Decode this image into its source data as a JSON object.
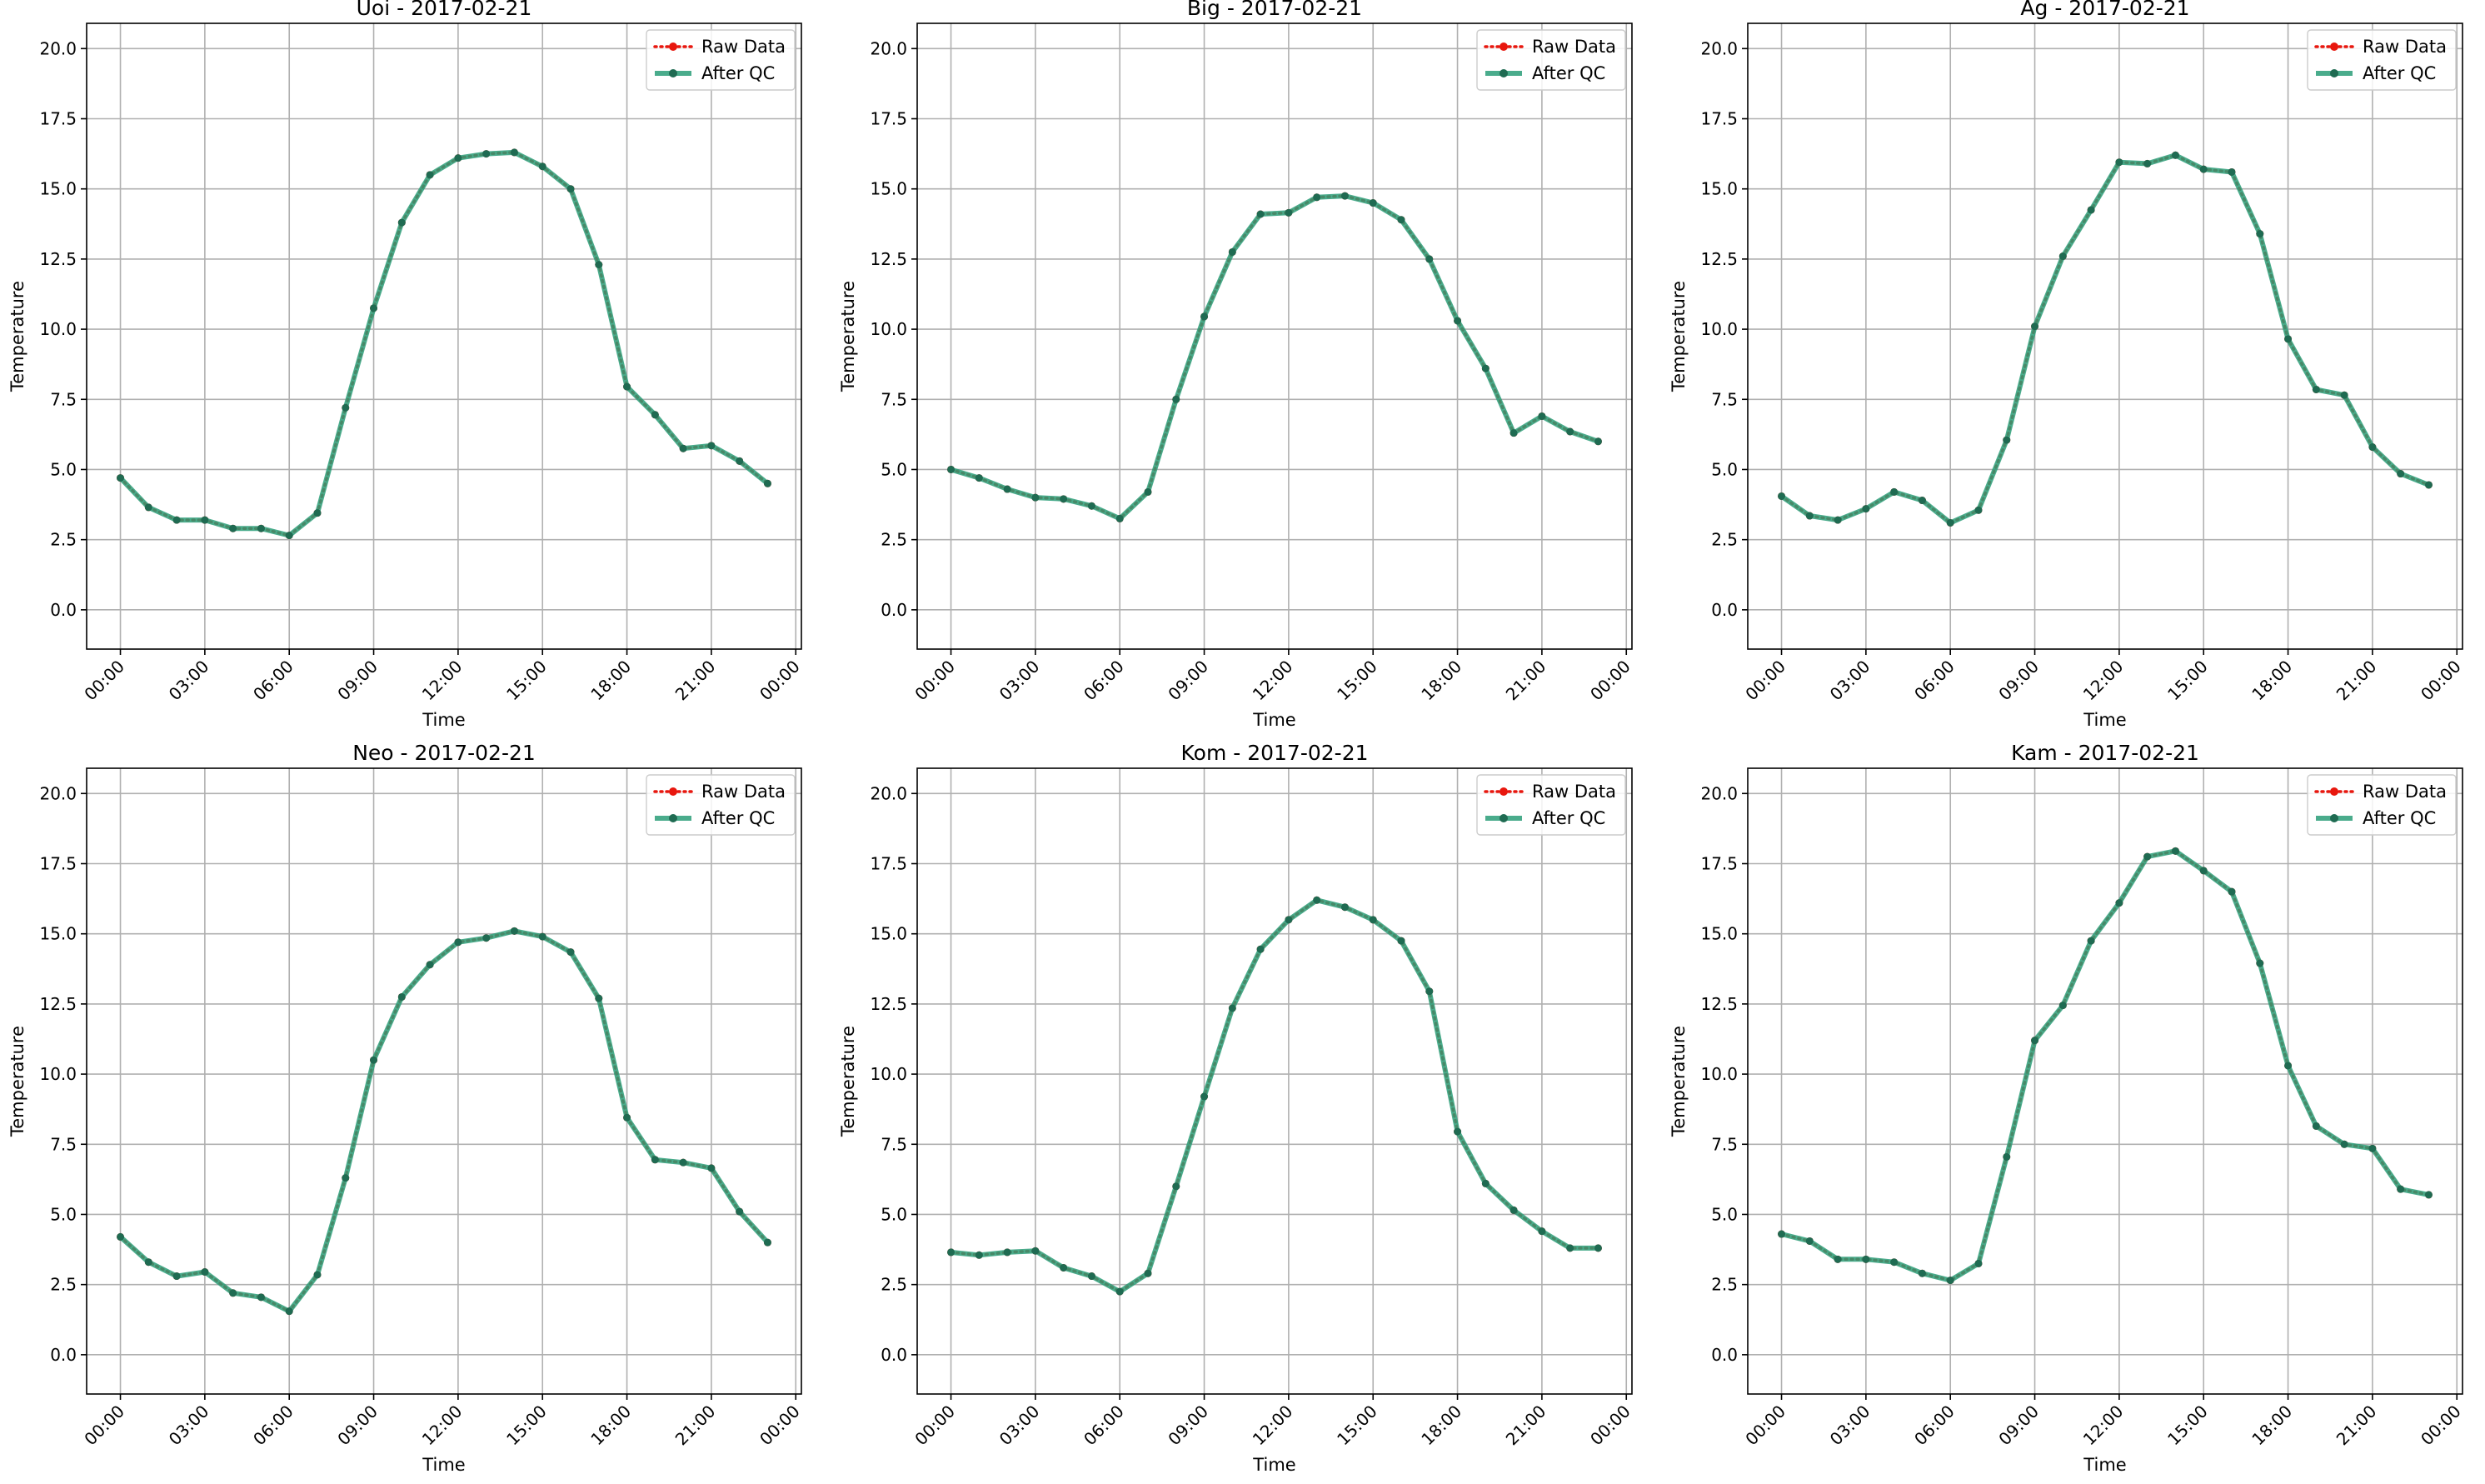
{
  "chart_data": [
    {
      "type": "line",
      "title": "Uoi - 2017-02-21",
      "xlabel": "Time",
      "ylabel": "Temperature",
      "xticks": [
        "00:00",
        "03:00",
        "06:00",
        "09:00",
        "12:00",
        "15:00",
        "18:00",
        "21:00",
        "00:00"
      ],
      "yticks": [
        "0.0",
        "2.5",
        "5.0",
        "7.5",
        "10.0",
        "12.5",
        "15.0",
        "17.5",
        "20.0"
      ],
      "ylim": [
        -1.4,
        20.9
      ],
      "grid": true,
      "legend_position": "top-right",
      "x": [
        "00:00",
        "01:00",
        "02:00",
        "03:00",
        "04:00",
        "05:00",
        "06:00",
        "07:00",
        "08:00",
        "09:00",
        "10:00",
        "11:00",
        "12:00",
        "13:00",
        "14:00",
        "15:00",
        "16:00",
        "17:00",
        "18:00",
        "19:00",
        "20:00",
        "21:00",
        "22:00",
        "23:00"
      ],
      "series": [
        {
          "name": "Raw Data",
          "color": "#e8170e",
          "style": "dotted",
          "marker": "circle",
          "values": [
            4.7,
            3.65,
            3.2,
            3.2,
            2.9,
            2.9,
            2.65,
            3.45,
            7.2,
            10.75,
            13.8,
            15.5,
            16.1,
            16.25,
            16.3,
            15.8,
            15.0,
            12.3,
            7.95,
            6.95,
            5.75,
            5.85,
            5.3,
            4.5
          ]
        },
        {
          "name": "After QC",
          "color": "#2a9d78",
          "style": "solid",
          "marker": "circle",
          "values": [
            4.7,
            3.65,
            3.2,
            3.2,
            2.9,
            2.9,
            2.65,
            3.45,
            7.2,
            10.75,
            13.8,
            15.5,
            16.1,
            16.25,
            16.3,
            15.8,
            15.0,
            12.3,
            7.95,
            6.95,
            5.75,
            5.85,
            5.3,
            4.5
          ]
        }
      ]
    },
    {
      "type": "line",
      "title": "Big - 2017-02-21",
      "xlabel": "Time",
      "ylabel": "Temperature",
      "xticks": [
        "00:00",
        "03:00",
        "06:00",
        "09:00",
        "12:00",
        "15:00",
        "18:00",
        "21:00",
        "00:00"
      ],
      "yticks": [
        "0.0",
        "2.5",
        "5.0",
        "7.5",
        "10.0",
        "12.5",
        "15.0",
        "17.5",
        "20.0"
      ],
      "ylim": [
        -1.4,
        20.9
      ],
      "grid": true,
      "legend_position": "top-right",
      "x": [
        "00:00",
        "01:00",
        "02:00",
        "03:00",
        "04:00",
        "05:00",
        "06:00",
        "07:00",
        "08:00",
        "09:00",
        "10:00",
        "11:00",
        "12:00",
        "13:00",
        "14:00",
        "15:00",
        "16:00",
        "17:00",
        "18:00",
        "19:00",
        "20:00",
        "21:00",
        "22:00",
        "23:00"
      ],
      "series": [
        {
          "name": "Raw Data",
          "color": "#e8170e",
          "style": "dotted",
          "marker": "circle",
          "values": [
            5.0,
            4.7,
            4.3,
            4.0,
            3.95,
            3.7,
            3.25,
            4.2,
            7.5,
            10.45,
            12.75,
            14.1,
            14.15,
            14.7,
            14.75,
            14.5,
            13.9,
            12.5,
            10.3,
            8.6,
            6.3,
            6.9,
            6.35,
            6.0
          ]
        },
        {
          "name": "After QC",
          "color": "#2a9d78",
          "style": "solid",
          "marker": "circle",
          "values": [
            5.0,
            4.7,
            4.3,
            4.0,
            3.95,
            3.7,
            3.25,
            4.2,
            7.5,
            10.45,
            12.75,
            14.1,
            14.15,
            14.7,
            14.75,
            14.5,
            13.9,
            12.5,
            10.3,
            8.6,
            6.3,
            6.9,
            6.35,
            6.0
          ]
        }
      ]
    },
    {
      "type": "line",
      "title": "Ag - 2017-02-21",
      "xlabel": "Time",
      "ylabel": "Temperature",
      "xticks": [
        "00:00",
        "03:00",
        "06:00",
        "09:00",
        "12:00",
        "15:00",
        "18:00",
        "21:00",
        "00:00"
      ],
      "yticks": [
        "0.0",
        "2.5",
        "5.0",
        "7.5",
        "10.0",
        "12.5",
        "15.0",
        "17.5",
        "20.0"
      ],
      "ylim": [
        -1.4,
        20.9
      ],
      "grid": true,
      "legend_position": "top-right",
      "x": [
        "00:00",
        "01:00",
        "02:00",
        "03:00",
        "04:00",
        "05:00",
        "06:00",
        "07:00",
        "08:00",
        "09:00",
        "10:00",
        "11:00",
        "12:00",
        "13:00",
        "14:00",
        "15:00",
        "16:00",
        "17:00",
        "18:00",
        "19:00",
        "20:00",
        "21:00",
        "22:00",
        "23:00"
      ],
      "series": [
        {
          "name": "Raw Data",
          "color": "#e8170e",
          "style": "dotted",
          "marker": "circle",
          "values": [
            4.05,
            3.35,
            3.2,
            3.6,
            4.2,
            3.9,
            3.1,
            3.55,
            6.05,
            10.1,
            12.6,
            14.25,
            15.95,
            15.9,
            16.2,
            15.7,
            15.6,
            13.4,
            9.65,
            7.85,
            7.65,
            5.8,
            4.85,
            4.45
          ]
        },
        {
          "name": "After QC",
          "color": "#2a9d78",
          "style": "solid",
          "marker": "circle",
          "values": [
            4.05,
            3.35,
            3.2,
            3.6,
            4.2,
            3.9,
            3.1,
            3.55,
            6.05,
            10.1,
            12.6,
            14.25,
            15.95,
            15.9,
            16.2,
            15.7,
            15.6,
            13.4,
            9.65,
            7.85,
            7.65,
            5.8,
            4.85,
            4.45
          ]
        }
      ]
    },
    {
      "type": "line",
      "title": "Neo - 2017-02-21",
      "xlabel": "Time",
      "ylabel": "Temperature",
      "xticks": [
        "00:00",
        "03:00",
        "06:00",
        "09:00",
        "12:00",
        "15:00",
        "18:00",
        "21:00",
        "00:00"
      ],
      "yticks": [
        "0.0",
        "2.5",
        "5.0",
        "7.5",
        "10.0",
        "12.5",
        "15.0",
        "17.5",
        "20.0"
      ],
      "ylim": [
        -1.4,
        20.9
      ],
      "grid": true,
      "legend_position": "top-right",
      "x": [
        "00:00",
        "01:00",
        "02:00",
        "03:00",
        "04:00",
        "05:00",
        "06:00",
        "07:00",
        "08:00",
        "09:00",
        "10:00",
        "11:00",
        "12:00",
        "13:00",
        "14:00",
        "15:00",
        "16:00",
        "17:00",
        "18:00",
        "19:00",
        "20:00",
        "21:00",
        "22:00",
        "23:00"
      ],
      "series": [
        {
          "name": "Raw Data",
          "color": "#e8170e",
          "style": "dotted",
          "marker": "circle",
          "values": [
            4.2,
            3.3,
            2.8,
            2.95,
            2.2,
            2.05,
            1.55,
            2.85,
            6.3,
            10.5,
            12.75,
            13.9,
            14.7,
            14.85,
            15.1,
            14.9,
            14.35,
            12.7,
            8.45,
            6.95,
            6.85,
            6.65,
            5.1,
            4.0
          ]
        },
        {
          "name": "After QC",
          "color": "#2a9d78",
          "style": "solid",
          "marker": "circle",
          "values": [
            4.2,
            3.3,
            2.8,
            2.95,
            2.2,
            2.05,
            1.55,
            2.85,
            6.3,
            10.5,
            12.75,
            13.9,
            14.7,
            14.85,
            15.1,
            14.9,
            14.35,
            12.7,
            8.45,
            6.95,
            6.85,
            6.65,
            5.1,
            4.0
          ]
        }
      ]
    },
    {
      "type": "line",
      "title": "Kom - 2017-02-21",
      "xlabel": "Time",
      "ylabel": "Temperature",
      "xticks": [
        "00:00",
        "03:00",
        "06:00",
        "09:00",
        "12:00",
        "15:00",
        "18:00",
        "21:00",
        "00:00"
      ],
      "yticks": [
        "0.0",
        "2.5",
        "5.0",
        "7.5",
        "10.0",
        "12.5",
        "15.0",
        "17.5",
        "20.0"
      ],
      "ylim": [
        -1.4,
        20.9
      ],
      "grid": true,
      "legend_position": "top-right",
      "x": [
        "00:00",
        "01:00",
        "02:00",
        "03:00",
        "04:00",
        "05:00",
        "06:00",
        "07:00",
        "08:00",
        "09:00",
        "10:00",
        "11:00",
        "12:00",
        "13:00",
        "14:00",
        "15:00",
        "16:00",
        "17:00",
        "18:00",
        "19:00",
        "20:00",
        "21:00",
        "22:00",
        "23:00"
      ],
      "series": [
        {
          "name": "Raw Data",
          "color": "#e8170e",
          "style": "dotted",
          "marker": "circle",
          "values": [
            3.65,
            3.55,
            3.65,
            3.7,
            3.1,
            2.8,
            2.25,
            2.9,
            6.0,
            9.2,
            12.35,
            14.45,
            15.5,
            16.2,
            15.95,
            15.5,
            14.75,
            12.95,
            7.95,
            6.1,
            5.15,
            4.4,
            3.8,
            3.8
          ]
        },
        {
          "name": "After QC",
          "color": "#2a9d78",
          "style": "solid",
          "marker": "circle",
          "values": [
            3.65,
            3.55,
            3.65,
            3.7,
            3.1,
            2.8,
            2.25,
            2.9,
            6.0,
            9.2,
            12.35,
            14.45,
            15.5,
            16.2,
            15.95,
            15.5,
            14.75,
            12.95,
            7.95,
            6.1,
            5.15,
            4.4,
            3.8,
            3.8
          ]
        }
      ]
    },
    {
      "type": "line",
      "title": "Kam - 2017-02-21",
      "xlabel": "Time",
      "ylabel": "Temperature",
      "xticks": [
        "00:00",
        "03:00",
        "06:00",
        "09:00",
        "12:00",
        "15:00",
        "18:00",
        "21:00",
        "00:00"
      ],
      "yticks": [
        "0.0",
        "2.5",
        "5.0",
        "7.5",
        "10.0",
        "12.5",
        "15.0",
        "17.5",
        "20.0"
      ],
      "ylim": [
        -1.4,
        20.9
      ],
      "grid": true,
      "legend_position": "top-right",
      "x": [
        "00:00",
        "01:00",
        "02:00",
        "03:00",
        "04:00",
        "05:00",
        "06:00",
        "07:00",
        "08:00",
        "09:00",
        "10:00",
        "11:00",
        "12:00",
        "13:00",
        "14:00",
        "15:00",
        "16:00",
        "17:00",
        "18:00",
        "19:00",
        "20:00",
        "21:00",
        "22:00",
        "23:00"
      ],
      "series": [
        {
          "name": "Raw Data",
          "color": "#e8170e",
          "style": "dotted",
          "marker": "circle",
          "values": [
            4.3,
            4.05,
            3.4,
            3.4,
            3.3,
            2.9,
            2.65,
            3.25,
            7.05,
            11.2,
            12.45,
            14.75,
            16.1,
            17.75,
            17.95,
            17.25,
            16.5,
            13.95,
            10.3,
            8.15,
            7.5,
            7.35,
            5.9,
            5.7
          ]
        },
        {
          "name": "After QC",
          "color": "#2a9d78",
          "style": "solid",
          "marker": "circle",
          "values": [
            4.3,
            4.05,
            3.4,
            3.4,
            3.3,
            2.9,
            2.65,
            3.25,
            7.05,
            11.2,
            12.45,
            14.75,
            16.1,
            17.75,
            17.95,
            17.25,
            16.5,
            13.95,
            10.3,
            8.15,
            7.5,
            7.35,
            5.9,
            5.7
          ]
        }
      ]
    }
  ]
}
